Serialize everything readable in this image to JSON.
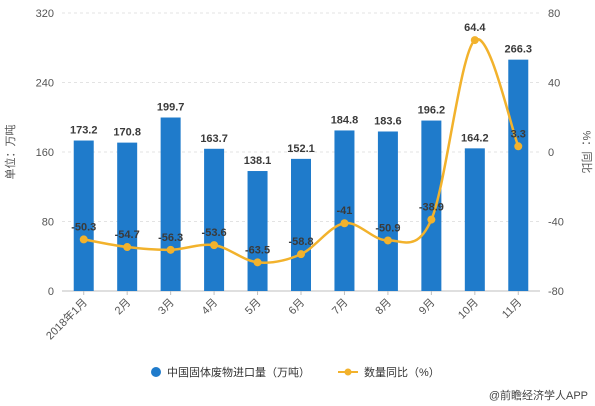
{
  "chart_data": {
    "type": "bar",
    "categories": [
      "2018年1月",
      "2月",
      "3月",
      "4月",
      "5月",
      "6月",
      "7月",
      "8月",
      "9月",
      "10月",
      "11月"
    ],
    "series": [
      {
        "name": "中国固体废物进口量（万吨）",
        "type": "bar",
        "axis": "left",
        "color": "#1f7bcb",
        "values": [
          173.2,
          170.8,
          199.7,
          163.7,
          138.1,
          152.1,
          184.8,
          183.6,
          196.2,
          164.2,
          266.3
        ]
      },
      {
        "name": "数量同比（%）",
        "type": "line",
        "axis": "right",
        "color": "#f2b22c",
        "values": [
          -50.3,
          -54.7,
          -56.3,
          -53.6,
          -63.5,
          -58.8,
          -41,
          -50.9,
          -38.9,
          64.4,
          3.3
        ]
      }
    ],
    "ylabel": "单位：万吨",
    "y2label": "%：同比",
    "ylim": [
      0,
      320
    ],
    "yticks": [
      0,
      80,
      160,
      240,
      320
    ],
    "y2lim": [
      -80,
      80
    ],
    "y2ticks": [
      -80,
      -40,
      0,
      40,
      80
    ],
    "grid": true,
    "legend": "bottom"
  },
  "source": "@前瞻经济学人APP"
}
